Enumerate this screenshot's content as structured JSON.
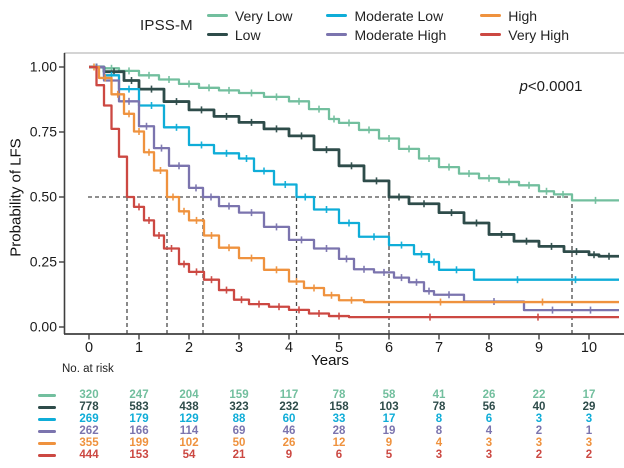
{
  "legend": {
    "title": "IPSS-M"
  },
  "p_value": "p<0.0001",
  "x_axis": {
    "label": "Years"
  },
  "y_axis": {
    "label": "Probability of LFS"
  },
  "risk_table": {
    "title": "No. at risk",
    "years": [
      0,
      1,
      2,
      3,
      4,
      5,
      6,
      7,
      8,
      9,
      10
    ],
    "rows": [
      {
        "group": "Very Low",
        "color": "#72BF9E",
        "counts": [
          320,
          247,
          204,
          159,
          117,
          78,
          58,
          41,
          26,
          22,
          17
        ]
      },
      {
        "group": "Low",
        "color": "#2E4C4A",
        "counts": [
          778,
          583,
          438,
          323,
          232,
          158,
          103,
          78,
          56,
          40,
          29
        ]
      },
      {
        "group": "Moderate Low",
        "color": "#0FADD8",
        "counts": [
          269,
          179,
          129,
          88,
          60,
          33,
          17,
          8,
          6,
          3,
          3
        ]
      },
      {
        "group": "Moderate High",
        "color": "#7B74AE",
        "counts": [
          262,
          166,
          114,
          69,
          46,
          28,
          19,
          8,
          4,
          2,
          1
        ]
      },
      {
        "group": "High",
        "color": "#EF923E",
        "counts": [
          355,
          199,
          102,
          50,
          26,
          12,
          9,
          4,
          3,
          3,
          3
        ]
      },
      {
        "group": "Very High",
        "color": "#CC4842",
        "counts": [
          444,
          153,
          54,
          21,
          9,
          6,
          5,
          3,
          3,
          2,
          2
        ]
      }
    ]
  },
  "chart_data": {
    "type": "line",
    "subtype": "kaplan-meier-step",
    "title": "",
    "xlabel": "Years",
    "ylabel": "Probability of LFS",
    "xlim": [
      0,
      10.6
    ],
    "ylim": [
      0,
      1.0
    ],
    "x_ticks": [
      0,
      1,
      2,
      3,
      4,
      5,
      6,
      7,
      8,
      9,
      10
    ],
    "y_ticks": [
      1.0,
      0.75,
      0.5,
      0.25,
      0.0
    ],
    "y_tick_labels": [
      "1.00",
      "0.75",
      "0.50",
      "0.25",
      "0.00"
    ],
    "grid": false,
    "legend_position": "top",
    "annotation": "p<0.0001",
    "reference_line_y": 0.5,
    "median_lfs_years": [
      0.76,
      1.56,
      2.28,
      4.15,
      6.0,
      9.66
    ],
    "series": [
      {
        "name": "Very Low",
        "color": "#72BF9E",
        "points": [
          [
            0,
            1
          ],
          [
            0.3,
            0.995
          ],
          [
            0.6,
            0.985
          ],
          [
            1,
            0.968
          ],
          [
            1.4,
            0.952
          ],
          [
            1.8,
            0.935
          ],
          [
            2.2,
            0.92
          ],
          [
            2.6,
            0.91
          ],
          [
            3,
            0.9
          ],
          [
            3.5,
            0.885
          ],
          [
            4,
            0.868
          ],
          [
            4.4,
            0.838
          ],
          [
            4.8,
            0.8
          ],
          [
            5,
            0.785
          ],
          [
            5.4,
            0.758
          ],
          [
            5.8,
            0.725
          ],
          [
            6.2,
            0.685
          ],
          [
            6.6,
            0.648
          ],
          [
            7,
            0.615
          ],
          [
            7.4,
            0.59
          ],
          [
            7.8,
            0.572
          ],
          [
            8.2,
            0.558
          ],
          [
            8.6,
            0.545
          ],
          [
            9,
            0.522
          ],
          [
            9.3,
            0.51
          ],
          [
            9.66,
            0.487
          ],
          [
            10.6,
            0.487
          ]
        ]
      },
      {
        "name": "Low",
        "color": "#2E4C4A",
        "points": [
          [
            0,
            1
          ],
          [
            0.3,
            0.982
          ],
          [
            0.7,
            0.948
          ],
          [
            1,
            0.915
          ],
          [
            1.5,
            0.867
          ],
          [
            2,
            0.835
          ],
          [
            2.5,
            0.81
          ],
          [
            3,
            0.787
          ],
          [
            3.5,
            0.762
          ],
          [
            4,
            0.735
          ],
          [
            4.5,
            0.682
          ],
          [
            5,
            0.62
          ],
          [
            5.5,
            0.562
          ],
          [
            6,
            0.5
          ],
          [
            6.4,
            0.474
          ],
          [
            7,
            0.44
          ],
          [
            7.5,
            0.4
          ],
          [
            8,
            0.356
          ],
          [
            8.5,
            0.33
          ],
          [
            9,
            0.31
          ],
          [
            9.5,
            0.29
          ],
          [
            10,
            0.278
          ],
          [
            10.2,
            0.272
          ],
          [
            10.6,
            0.272
          ]
        ]
      },
      {
        "name": "Moderate Low",
        "color": "#0FADD8",
        "points": [
          [
            0,
            1
          ],
          [
            0.3,
            0.968
          ],
          [
            0.6,
            0.915
          ],
          [
            1,
            0.852
          ],
          [
            1.5,
            0.768
          ],
          [
            2,
            0.7
          ],
          [
            2.5,
            0.668
          ],
          [
            3,
            0.648
          ],
          [
            3.3,
            0.6
          ],
          [
            3.7,
            0.548
          ],
          [
            4.15,
            0.5
          ],
          [
            4.5,
            0.452
          ],
          [
            5,
            0.4
          ],
          [
            5.4,
            0.347
          ],
          [
            6,
            0.315
          ],
          [
            6.5,
            0.28
          ],
          [
            6.8,
            0.25
          ],
          [
            7,
            0.22
          ],
          [
            7.7,
            0.182
          ],
          [
            10.6,
            0.182
          ]
        ]
      },
      {
        "name": "Moderate High",
        "color": "#7B74AE",
        "points": [
          [
            0,
            1
          ],
          [
            0.3,
            0.948
          ],
          [
            0.6,
            0.868
          ],
          [
            1,
            0.772
          ],
          [
            1.3,
            0.688
          ],
          [
            1.6,
            0.62
          ],
          [
            2,
            0.535
          ],
          [
            2.28,
            0.5
          ],
          [
            2.6,
            0.465
          ],
          [
            3,
            0.44
          ],
          [
            3.5,
            0.385
          ],
          [
            4,
            0.335
          ],
          [
            4.5,
            0.302
          ],
          [
            5,
            0.262
          ],
          [
            5.3,
            0.222
          ],
          [
            5.7,
            0.21
          ],
          [
            6.1,
            0.19
          ],
          [
            6.4,
            0.172
          ],
          [
            6.7,
            0.138
          ],
          [
            6.9,
            0.124
          ],
          [
            7.5,
            0.098
          ],
          [
            8.7,
            0.065
          ],
          [
            10.6,
            0.065
          ]
        ]
      },
      {
        "name": "High",
        "color": "#EF923E",
        "points": [
          [
            0,
            1
          ],
          [
            0.2,
            0.958
          ],
          [
            0.45,
            0.895
          ],
          [
            0.7,
            0.82
          ],
          [
            0.9,
            0.752
          ],
          [
            1.1,
            0.672
          ],
          [
            1.3,
            0.602
          ],
          [
            1.56,
            0.5
          ],
          [
            1.8,
            0.445
          ],
          [
            2,
            0.41
          ],
          [
            2.3,
            0.352
          ],
          [
            2.6,
            0.305
          ],
          [
            3,
            0.265
          ],
          [
            3.5,
            0.22
          ],
          [
            4,
            0.175
          ],
          [
            4.3,
            0.15
          ],
          [
            4.7,
            0.122
          ],
          [
            5,
            0.103
          ],
          [
            5.5,
            0.096
          ],
          [
            10.6,
            0.096
          ]
        ]
      },
      {
        "name": "Very High",
        "color": "#CC4842",
        "points": [
          [
            0,
            1
          ],
          [
            0.15,
            0.93
          ],
          [
            0.3,
            0.852
          ],
          [
            0.45,
            0.762
          ],
          [
            0.6,
            0.655
          ],
          [
            0.76,
            0.5
          ],
          [
            0.9,
            0.462
          ],
          [
            1.1,
            0.41
          ],
          [
            1.3,
            0.352
          ],
          [
            1.5,
            0.302
          ],
          [
            1.8,
            0.242
          ],
          [
            2,
            0.212
          ],
          [
            2.3,
            0.182
          ],
          [
            2.6,
            0.142
          ],
          [
            2.9,
            0.105
          ],
          [
            3.2,
            0.088
          ],
          [
            3.6,
            0.078
          ],
          [
            4,
            0.066
          ],
          [
            4.4,
            0.052
          ],
          [
            4.8,
            0.042
          ],
          [
            5.2,
            0.038
          ],
          [
            10.6,
            0.038
          ]
        ]
      }
    ]
  }
}
